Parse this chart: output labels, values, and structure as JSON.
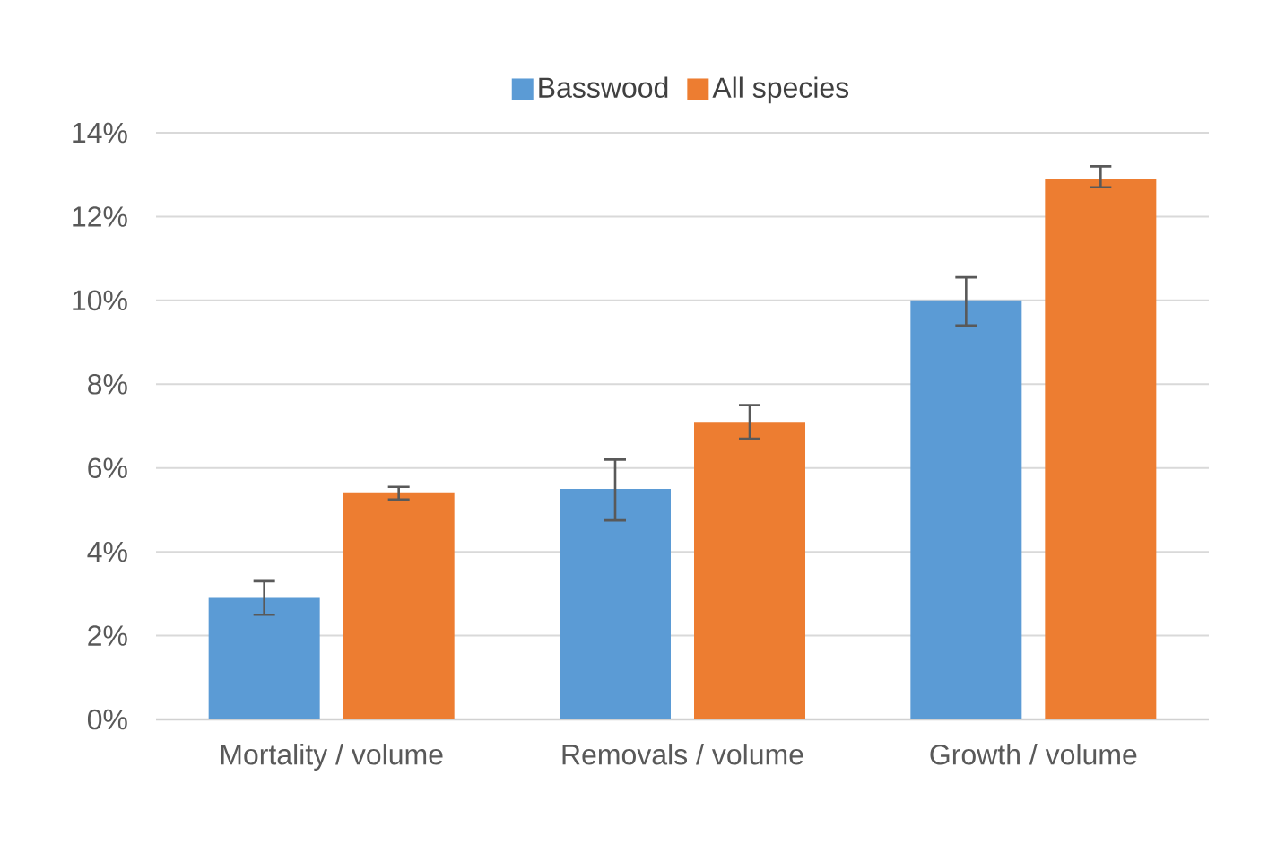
{
  "chart_data": {
    "type": "bar",
    "categories": [
      "Mortality / volume",
      "Removals / volume",
      "Growth / volume"
    ],
    "series": [
      {
        "name": "Basswood",
        "color": "#5b9bd5",
        "values": [
          2.9,
          5.5,
          10.0
        ],
        "errors": [
          [
            2.5,
            3.3
          ],
          [
            4.75,
            6.2
          ],
          [
            9.4,
            10.55
          ]
        ]
      },
      {
        "name": "All species",
        "color": "#ed7d31",
        "values": [
          5.4,
          7.1,
          12.9
        ],
        "errors": [
          [
            5.25,
            5.55
          ],
          [
            6.7,
            7.5
          ],
          [
            12.7,
            13.2
          ]
        ]
      }
    ],
    "ylim": [
      0,
      14
    ],
    "yticks": [
      {
        "value": 0,
        "label": "0%"
      },
      {
        "value": 2,
        "label": "2%"
      },
      {
        "value": 4,
        "label": "4%"
      },
      {
        "value": 6,
        "label": "6%"
      },
      {
        "value": 8,
        "label": "8%"
      },
      {
        "value": 10,
        "label": "10%"
      },
      {
        "value": 12,
        "label": "12%"
      },
      {
        "value": 14,
        "label": "14%"
      }
    ],
    "grid": "y",
    "legend": "top"
  }
}
